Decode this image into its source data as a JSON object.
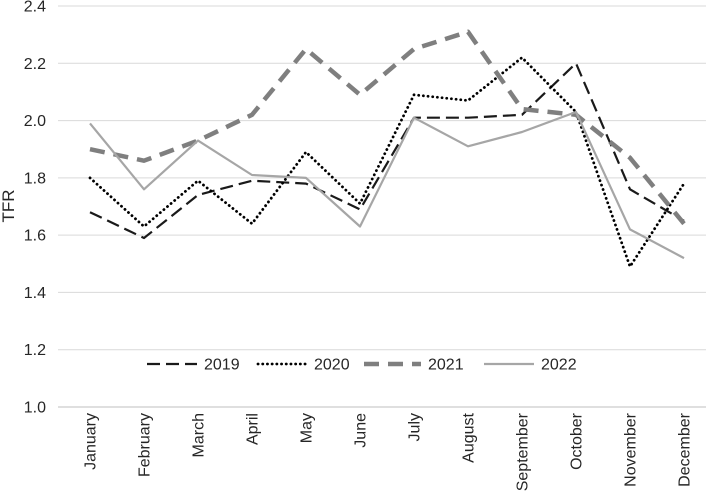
{
  "figure": {
    "background": "#ffffff"
  },
  "chart_data": {
    "type": "line",
    "title": "",
    "xlabel": "",
    "ylabel": "TFR",
    "ylim": [
      1.0,
      2.4
    ],
    "ytick_step": 0.2,
    "yticks": [
      "1.0",
      "1.2",
      "1.4",
      "1.6",
      "1.8",
      "2.0",
      "2.2",
      "2.4"
    ],
    "grid": "horizontal",
    "grid_color": "#d9d9d9",
    "axis_color": "#bfbfbf",
    "text_color": "#262626",
    "legend_position": "bottom-inside",
    "categories": [
      "January",
      "February",
      "March",
      "April",
      "May",
      "June",
      "July",
      "August",
      "September",
      "October",
      "November",
      "December"
    ],
    "series": [
      {
        "name": "2019",
        "color": "#1a1a1a",
        "style": "dash",
        "values": [
          1.68,
          1.59,
          1.74,
          1.79,
          1.78,
          1.69,
          2.01,
          2.01,
          2.02,
          2.2,
          1.76,
          1.65
        ]
      },
      {
        "name": "2020",
        "color": "#000000",
        "style": "dot",
        "values": [
          1.8,
          1.63,
          1.79,
          1.64,
          1.89,
          1.71,
          2.09,
          2.07,
          2.22,
          2.03,
          1.49,
          1.78
        ]
      },
      {
        "name": "2021",
        "color": "#7f7f7f",
        "style": "thick-dash",
        "values": [
          1.9,
          1.86,
          1.93,
          2.02,
          2.25,
          2.09,
          2.25,
          2.31,
          2.04,
          2.02,
          1.87,
          1.64
        ]
      },
      {
        "name": "2022",
        "color": "#a6a6a6",
        "style": "solid",
        "values": [
          1.99,
          1.76,
          1.93,
          1.81,
          1.8,
          1.63,
          2.01,
          1.91,
          1.96,
          2.03,
          1.62,
          1.52
        ]
      }
    ]
  }
}
